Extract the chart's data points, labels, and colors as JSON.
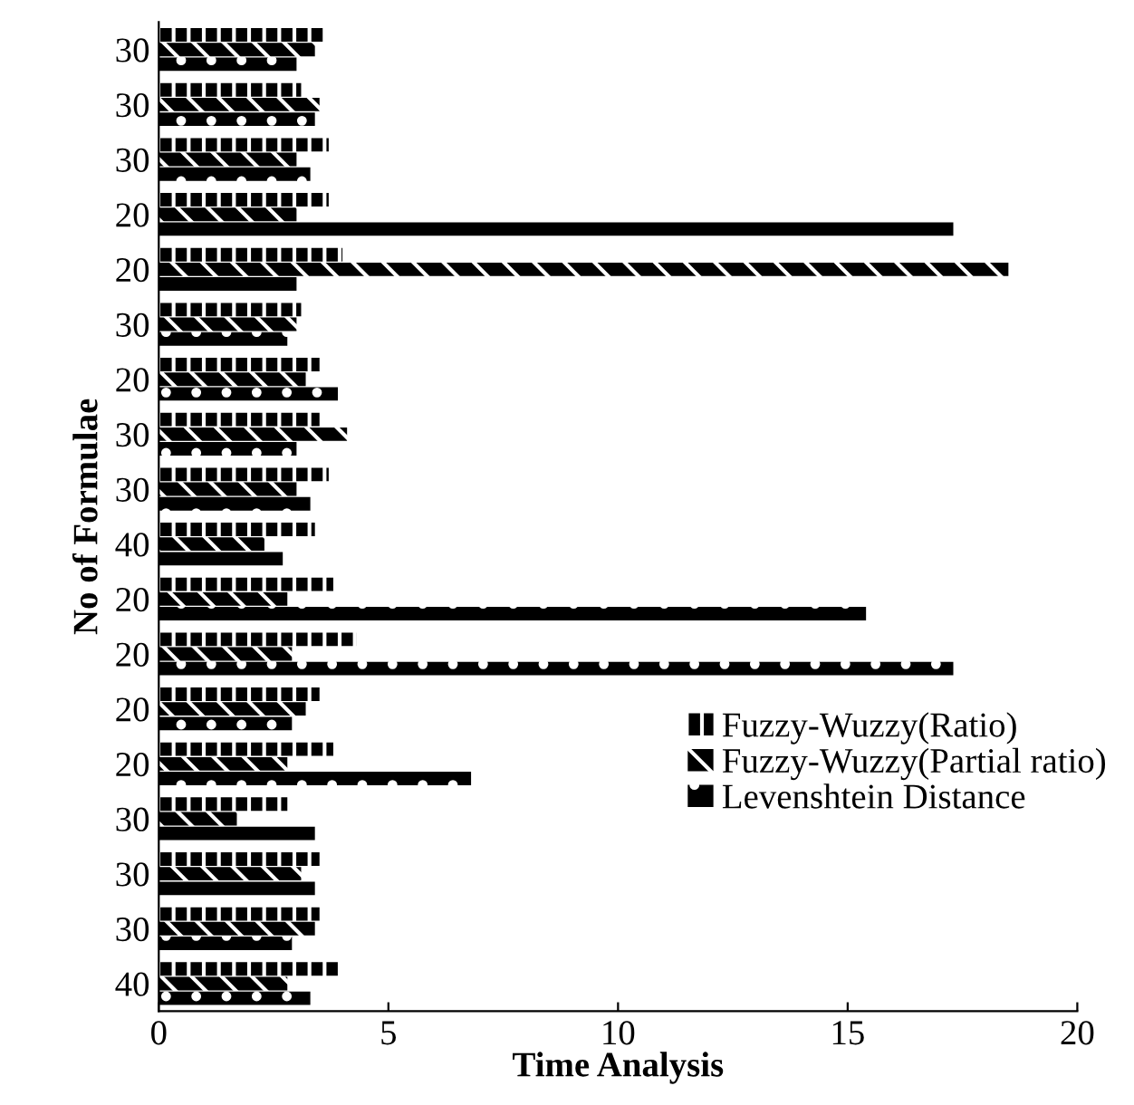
{
  "chart_data": {
    "type": "bar",
    "orientation": "horizontal",
    "xlabel": "Time Analysis",
    "ylabel": "No of Formulae",
    "categories": [
      "30",
      "30",
      "30",
      "20",
      "20",
      "30",
      "20",
      "30",
      "30",
      "40",
      "20",
      "20",
      "20",
      "20",
      "30",
      "30",
      "30",
      "40"
    ],
    "series": [
      {
        "name": "Fuzzy-Wuzzy(Ratio)",
        "color": "#000000",
        "values": [
          3.6,
          3.1,
          3.7,
          3.7,
          4.0,
          3.1,
          3.5,
          3.5,
          3.7,
          3.4,
          3.8,
          4.3,
          3.5,
          3.8,
          2.8,
          3.5,
          3.5,
          3.9
        ]
      },
      {
        "name": "Fuzzy-Wuzzy(Partial ratio)",
        "color": "#000000",
        "values": [
          3.4,
          3.5,
          3.0,
          3.0,
          18.5,
          3.0,
          3.2,
          4.1,
          3.0,
          2.3,
          2.8,
          2.9,
          3.2,
          2.8,
          1.7,
          3.1,
          3.4,
          2.8
        ]
      },
      {
        "name": "Levenshtein Distance",
        "color": "#000000",
        "values": [
          3.0,
          3.4,
          3.3,
          17.3,
          3.0,
          2.8,
          3.9,
          3.0,
          3.3,
          2.7,
          15.4,
          17.3,
          2.9,
          6.8,
          3.4,
          3.4,
          2.9,
          3.3
        ]
      }
    ],
    "xlim": [
      0,
      20
    ],
    "xticks": [
      0,
      5,
      10,
      15,
      20
    ],
    "grid": false,
    "legend": "right"
  }
}
